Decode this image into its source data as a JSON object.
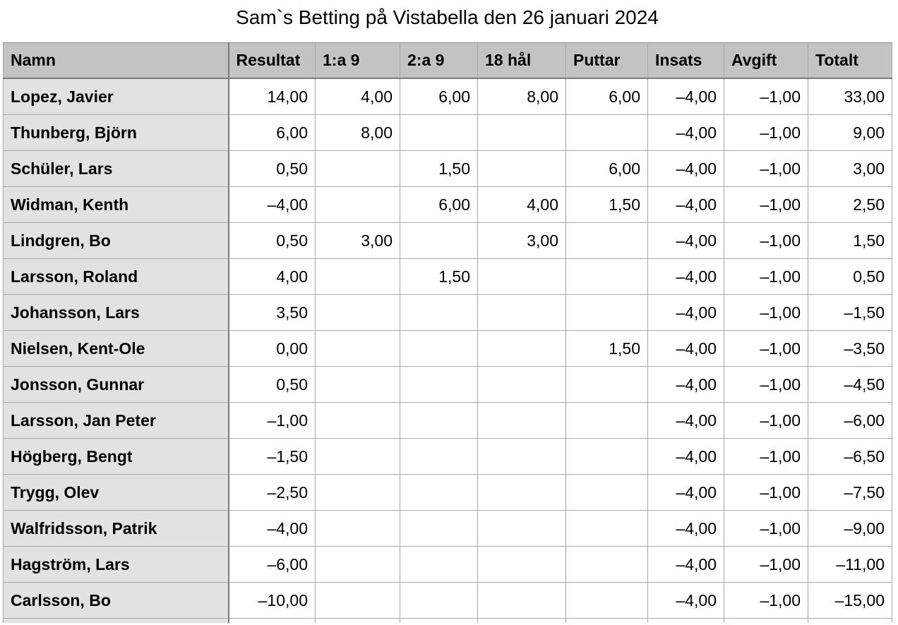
{
  "title": "Sam`s Betting på Vistabella den 26 januari 2024",
  "table": {
    "headers": [
      "Namn",
      "Resultat",
      "1:a 9",
      "2:a 9",
      "18 hål",
      "Puttar",
      "Insats",
      "Avgift",
      "Totalt"
    ],
    "rows": [
      [
        "Lopez, Javier",
        "14,00",
        "4,00",
        "6,00",
        "8,00",
        "6,00",
        "–4,00",
        "–1,00",
        "33,00"
      ],
      [
        "Thunberg, Björn",
        "6,00",
        "8,00",
        "",
        "",
        "",
        "–4,00",
        "–1,00",
        "9,00"
      ],
      [
        "Schüler, Lars",
        "0,50",
        "",
        "1,50",
        "",
        "6,00",
        "–4,00",
        "–1,00",
        "3,00"
      ],
      [
        "Widman, Kenth",
        "–4,00",
        "",
        "6,00",
        "4,00",
        "1,50",
        "–4,00",
        "–1,00",
        "2,50"
      ],
      [
        "Lindgren, Bo",
        "0,50",
        "3,00",
        "",
        "3,00",
        "",
        "–4,00",
        "–1,00",
        "1,50"
      ],
      [
        "Larsson, Roland",
        "4,00",
        "",
        "1,50",
        "",
        "",
        "–4,00",
        "–1,00",
        "0,50"
      ],
      [
        "Johansson, Lars",
        "3,50",
        "",
        "",
        "",
        "",
        "–4,00",
        "–1,00",
        "–1,50"
      ],
      [
        "Nielsen, Kent-Ole",
        "0,00",
        "",
        "",
        "",
        "1,50",
        "–4,00",
        "–1,00",
        "–3,50"
      ],
      [
        "Jonsson, Gunnar",
        "0,50",
        "",
        "",
        "",
        "",
        "–4,00",
        "–1,00",
        "–4,50"
      ],
      [
        "Larsson, Jan Peter",
        "–1,00",
        "",
        "",
        "",
        "",
        "–4,00",
        "–1,00",
        "–6,00"
      ],
      [
        "Högberg, Bengt",
        "–1,50",
        "",
        "",
        "",
        "",
        "–4,00",
        "–1,00",
        "–6,50"
      ],
      [
        "Trygg, Olev",
        "–2,50",
        "",
        "",
        "",
        "",
        "–4,00",
        "–1,00",
        "–7,50"
      ],
      [
        "Walfridsson, Patrik",
        "–4,00",
        "",
        "",
        "",
        "",
        "–4,00",
        "–1,00",
        "–9,00"
      ],
      [
        "Hagström, Lars",
        "–6,00",
        "",
        "",
        "",
        "",
        "–4,00",
        "–1,00",
        "–11,00"
      ],
      [
        "Carlsson, Bo",
        "–10,00",
        "",
        "",
        "",
        "",
        "–4,00",
        "–1,00",
        "–15,00"
      ]
    ]
  }
}
